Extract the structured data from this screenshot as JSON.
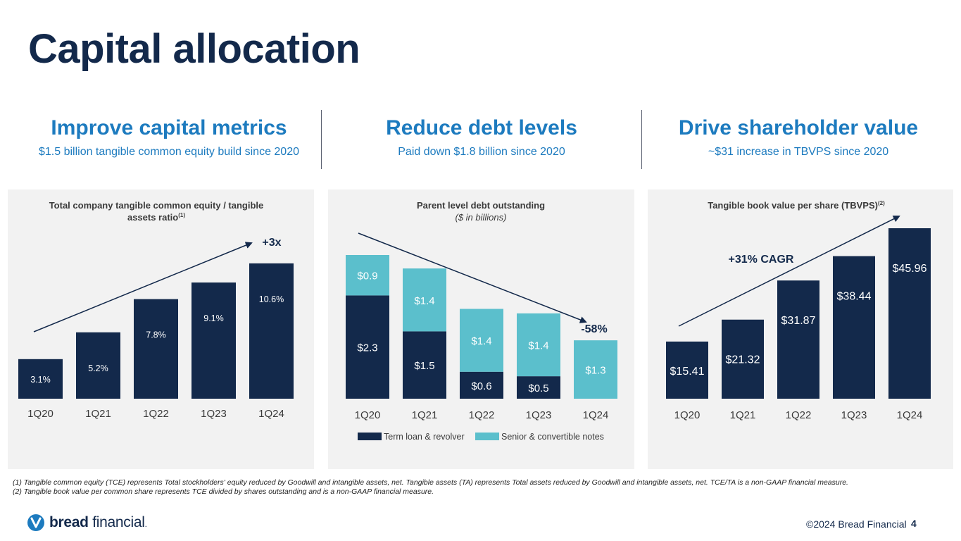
{
  "page": {
    "title": "Capital allocation",
    "columns": [
      {
        "heading": "Improve capital metrics",
        "subheading": "$1.5 billion tangible common equity build since 2020"
      },
      {
        "heading": "Reduce debt levels",
        "subheading": "Paid down $1.8 billion since 2020"
      },
      {
        "heading": "Drive shareholder value",
        "subheading": "~$31 increase in TBVPS since 2020"
      }
    ],
    "footnotes": [
      "(1) Tangible common equity (TCE) represents Total stockholders' equity reduced by Goodwill and intangible assets, net. Tangible assets (TA) represents Total assets reduced by Goodwill and intangible assets, net. TCE/TA is a non-GAAP financial measure.",
      "(2) Tangible book value per common share represents TCE divided by shares outstanding and is a non-GAAP financial measure."
    ],
    "logo_bold": "bread",
    "logo_light": "financial",
    "logo_tm": ".",
    "copyright": "©2024 Bread Financial",
    "page_number": "4"
  },
  "colors": {
    "navy": "#13294b",
    "teal": "#5bbfcc",
    "heading_blue": "#1d7bbf",
    "panel_bg": "#f2f2f2"
  },
  "chart_data": [
    {
      "type": "bar",
      "title": "Total company tangible common equity / tangible assets ratio",
      "title_lines": [
        "Total company tangible common equity / tangible",
        "assets ratio"
      ],
      "footnote_ref": "(1)",
      "categories": [
        "1Q20",
        "1Q21",
        "1Q22",
        "1Q23",
        "1Q24"
      ],
      "values": [
        3.1,
        5.2,
        7.8,
        9.1,
        10.6
      ],
      "data_labels": [
        "3.1%",
        "5.2%",
        "7.8%",
        "9.1%",
        "10.6%"
      ],
      "annotation": "+3x",
      "trend_arrow": true,
      "ylim": [
        0,
        11.2
      ]
    },
    {
      "type": "bar",
      "stacked": true,
      "title": "Parent level debt outstanding",
      "subtitle": "($ in billions)",
      "categories": [
        "1Q20",
        "1Q21",
        "1Q22",
        "1Q23",
        "1Q24"
      ],
      "series": [
        {
          "name": "Term loan & revolver",
          "color": "#13294b",
          "values": [
            2.3,
            1.5,
            0.6,
            0.5,
            0
          ],
          "labels": [
            "$2.3",
            "$1.5",
            "$0.6",
            "$0.5",
            ""
          ]
        },
        {
          "name": "Senior & convertible notes",
          "color": "#5bbfcc",
          "values": [
            0.9,
            1.4,
            1.4,
            1.4,
            1.3
          ],
          "labels": [
            "$0.9",
            "$1.4",
            "$1.4",
            "$1.4",
            "$1.3"
          ]
        }
      ],
      "annotation": "-58%",
      "trend_arrow": true,
      "legend": "bottom",
      "ylim": [
        0,
        3.2
      ]
    },
    {
      "type": "bar",
      "title": "Tangible book value per share (TBVPS)",
      "footnote_ref": "(2)",
      "categories": [
        "1Q20",
        "1Q21",
        "1Q22",
        "1Q23",
        "1Q24"
      ],
      "values": [
        15.41,
        21.32,
        31.87,
        38.44,
        45.96
      ],
      "data_labels": [
        "$15.41",
        "$21.32",
        "$31.87",
        "$38.44",
        "$45.96"
      ],
      "annotation": "+31% CAGR",
      "trend_arrow": true,
      "ylim": [
        0,
        45.96
      ]
    }
  ]
}
